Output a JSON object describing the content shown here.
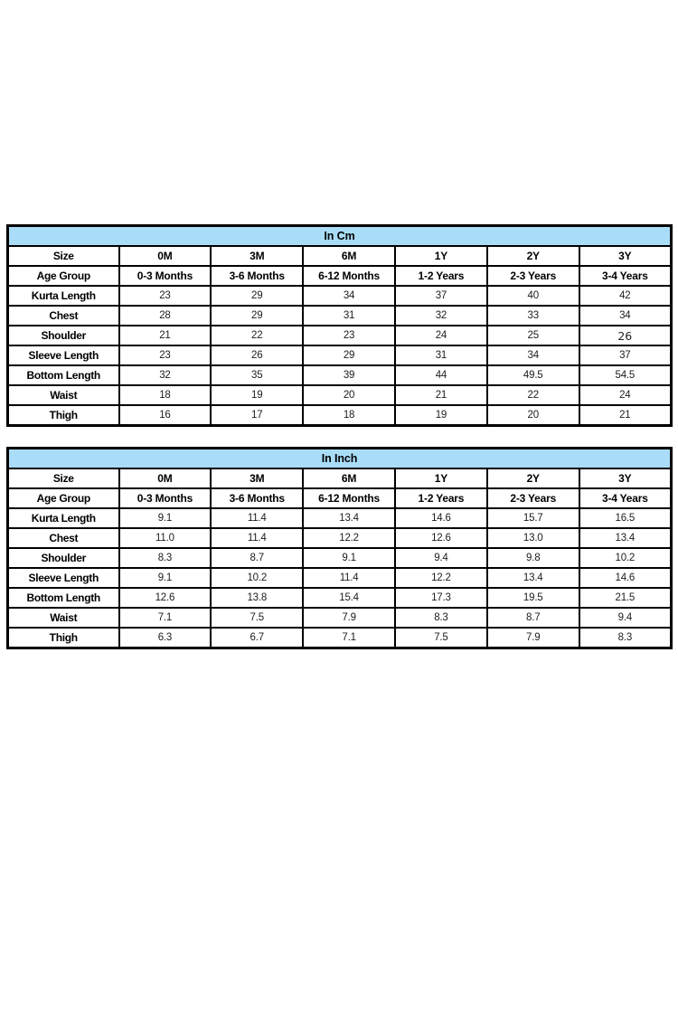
{
  "colors": {
    "page_background": "#ffffff",
    "table_header_background": "#a9dcf7",
    "border": "#000000",
    "text": "#000000"
  },
  "tables": [
    {
      "title": "In Cm",
      "header_row": {
        "label": "Size",
        "values": [
          "0M",
          "3M",
          "6M",
          "1Y",
          "2Y",
          "3Y"
        ]
      },
      "subheader_row": {
        "label": "Age Group",
        "values": [
          "0-3 Months",
          "3-6 Months",
          "6-12 Months",
          "1-2 Years",
          "2-3 Years",
          "3-4 Years"
        ]
      },
      "rows": [
        {
          "label": "Kurta Length",
          "values": [
            "23",
            "29",
            "34",
            "37",
            "40",
            "42"
          ]
        },
        {
          "label": "Chest",
          "values": [
            "28",
            "29",
            "31",
            "32",
            "33",
            "34"
          ]
        },
        {
          "label": "Shoulder",
          "values": [
            "21",
            "22",
            "23",
            "24",
            "25",
            {
              "text": "26",
              "style": "alt-num"
            }
          ]
        },
        {
          "label": "Sleeve Length",
          "values": [
            "23",
            "26",
            "29",
            "31",
            "34",
            "37"
          ]
        },
        {
          "label": "Bottom Length",
          "values": [
            "32",
            "35",
            "39",
            "44",
            "49.5",
            "54.5"
          ]
        },
        {
          "label": "Waist",
          "values": [
            "18",
            "19",
            "20",
            "21",
            "22",
            "24"
          ]
        },
        {
          "label": "Thigh",
          "values": [
            "16",
            "17",
            "18",
            "19",
            "20",
            "21"
          ]
        }
      ]
    },
    {
      "title": "In Inch",
      "header_row": {
        "label": "Size",
        "values": [
          "0M",
          "3M",
          "6M",
          "1Y",
          "2Y",
          "3Y"
        ]
      },
      "subheader_row": {
        "label": "Age Group",
        "values": [
          "0-3 Months",
          "3-6 Months",
          "6-12 Months",
          "1-2 Years",
          "2-3 Years",
          "3-4 Years"
        ]
      },
      "rows": [
        {
          "label": "Kurta Length",
          "values": [
            "9.1",
            "11.4",
            "13.4",
            "14.6",
            "15.7",
            "16.5"
          ]
        },
        {
          "label": "Chest",
          "values": [
            "11.0",
            "11.4",
            "12.2",
            "12.6",
            "13.0",
            "13.4"
          ]
        },
        {
          "label": "Shoulder",
          "values": [
            "8.3",
            "8.7",
            "9.1",
            "9.4",
            "9.8",
            "10.2"
          ]
        },
        {
          "label": "Sleeve Length",
          "values": [
            "9.1",
            "10.2",
            "11.4",
            "12.2",
            "13.4",
            "14.6"
          ]
        },
        {
          "label": "Bottom Length",
          "values": [
            "12.6",
            "13.8",
            "15.4",
            "17.3",
            "19.5",
            "21.5"
          ]
        },
        {
          "label": "Waist",
          "values": [
            "7.1",
            "7.5",
            "7.9",
            "8.3",
            "8.7",
            "9.4"
          ]
        },
        {
          "label": "Thigh",
          "values": [
            "6.3",
            "6.7",
            "7.1",
            "7.5",
            "7.9",
            "8.3"
          ]
        }
      ]
    }
  ]
}
